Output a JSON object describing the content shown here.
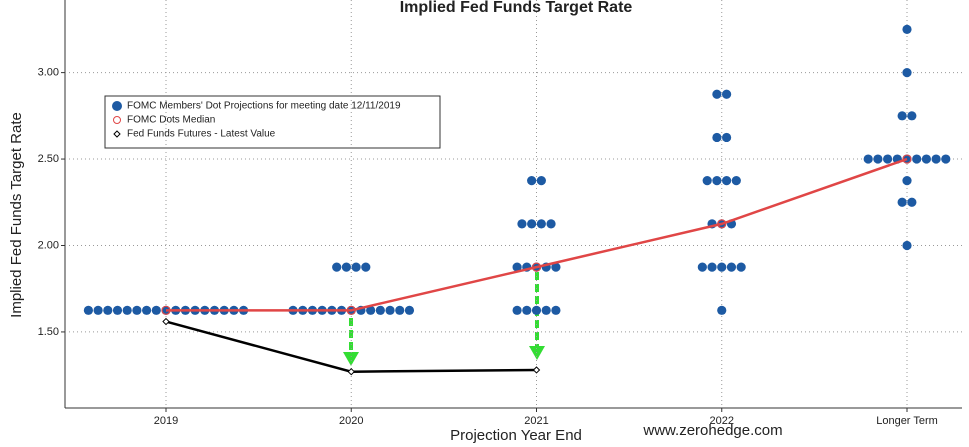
{
  "chart_data": {
    "type": "dot",
    "title": "Implied Fed Funds Target Rate",
    "y_label": "Implied Fed Funds Target Rate",
    "x_label": "Projection Year End",
    "watermark": "www.zerohedge.com",
    "categories": [
      "2019",
      "2020",
      "2021",
      "2022",
      "Longer Term"
    ],
    "series": [
      {
        "name": "FOMC Members' Dot Projections for meeting date 12/11/2019",
        "color": "#1d5aa3",
        "values": [
          [
            1.625,
            1.625,
            1.625,
            1.625,
            1.625,
            1.625,
            1.625,
            1.625,
            1.625,
            1.625,
            1.625,
            1.625,
            1.625,
            1.625,
            1.625,
            1.625,
            1.625
          ],
          [
            1.875,
            1.875,
            1.875,
            1.875,
            1.625,
            1.625,
            1.625,
            1.625,
            1.625,
            1.625,
            1.625,
            1.625,
            1.625,
            1.625,
            1.625,
            1.625,
            1.625
          ],
          [
            2.375,
            2.375,
            2.125,
            2.125,
            2.125,
            2.125,
            1.875,
            1.875,
            1.875,
            1.875,
            1.875,
            1.625,
            1.625,
            1.625,
            1.625,
            1.625
          ],
          [
            2.875,
            2.875,
            2.625,
            2.625,
            2.375,
            2.375,
            2.375,
            2.375,
            2.125,
            2.125,
            2.125,
            1.875,
            1.875,
            1.875,
            1.875,
            1.875,
            1.625
          ],
          [
            3.25,
            3.0,
            2.75,
            2.75,
            2.5,
            2.5,
            2.5,
            2.5,
            2.5,
            2.5,
            2.5,
            2.5,
            2.5,
            2.375,
            2.25,
            2.25,
            2.0
          ]
        ]
      },
      {
        "name": "FOMC Dots Median",
        "color": "#e04646",
        "values": [
          1.625,
          1.625,
          1.875,
          2.125,
          2.5
        ]
      },
      {
        "name": "Fed Funds Futures - Latest Value",
        "color": "#000000",
        "values": [
          1.56,
          1.27,
          1.28,
          null,
          null
        ]
      }
    ],
    "ylim": [
      1.06,
      3.42
    ],
    "yticks": [
      {
        "value": 1.5,
        "label": "1.50"
      },
      {
        "value": 2.0,
        "label": "2.00"
      },
      {
        "value": 2.5,
        "label": "2.50"
      },
      {
        "value": 3.0,
        "label": "3.00"
      }
    ],
    "grid": true
  }
}
